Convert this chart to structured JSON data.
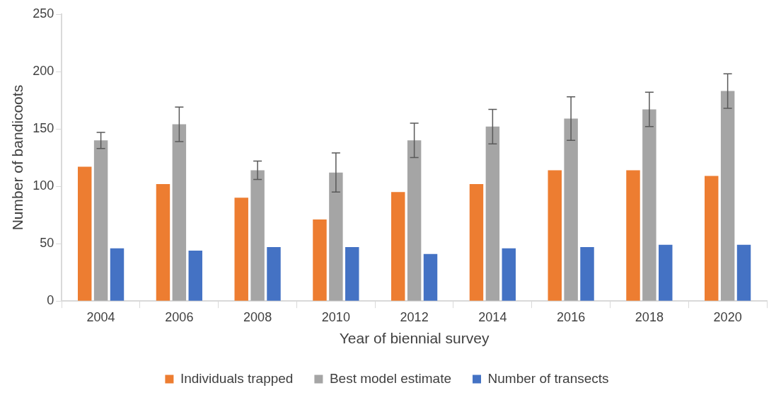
{
  "chart_data": {
    "type": "bar",
    "xlabel": "Year of biennial survey",
    "ylabel": "Number of bandicoots",
    "categories": [
      "2004",
      "2006",
      "2008",
      "2010",
      "2012",
      "2014",
      "2016",
      "2018",
      "2020"
    ],
    "series": [
      {
        "name": "Individuals trapped",
        "color": "#ed7d31",
        "values": [
          117,
          102,
          90,
          71,
          95,
          102,
          114,
          114,
          109
        ]
      },
      {
        "name": "Best model estimate",
        "color": "#a5a5a5",
        "values": [
          140,
          154,
          114,
          112,
          140,
          152,
          159,
          167,
          183
        ],
        "errors": [
          [
            133,
            147
          ],
          [
            139,
            169
          ],
          [
            106,
            122
          ],
          [
            95,
            129
          ],
          [
            125,
            155
          ],
          [
            137,
            167
          ],
          [
            140,
            178
          ],
          [
            152,
            182
          ],
          [
            168,
            198
          ]
        ]
      },
      {
        "name": "Number of transects",
        "color": "#4472c4",
        "values": [
          46,
          44,
          47,
          47,
          41,
          46,
          47,
          49,
          49
        ]
      }
    ],
    "ylim": [
      0,
      250
    ],
    "yticks": [
      0,
      50,
      100,
      150,
      200,
      250
    ],
    "grid": false,
    "legend": "bottom"
  }
}
